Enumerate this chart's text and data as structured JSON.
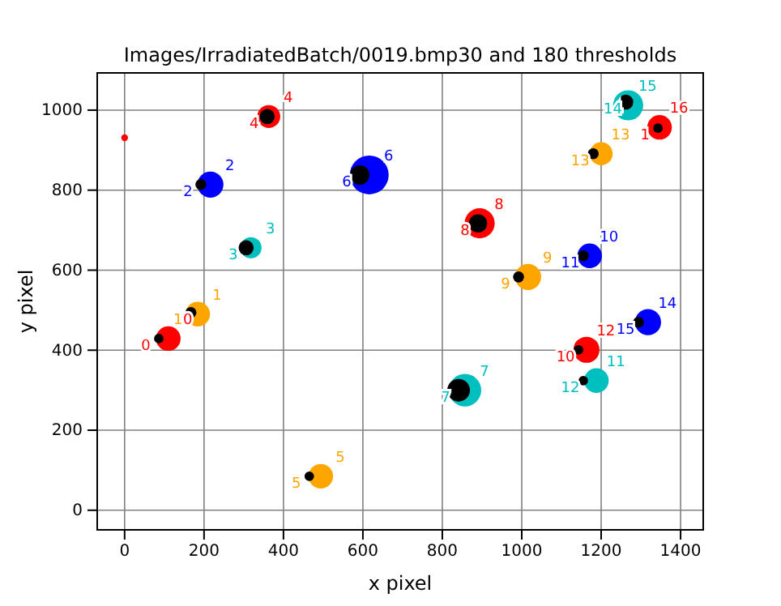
{
  "chart_data": {
    "type": "bubble",
    "title": "Images/IrradiatedBatch/0019.bmp30 and 180 thresholds",
    "xlabel": "x pixel",
    "ylabel": "y pixel",
    "xlim": [
      -69,
      1457
    ],
    "ylim": [
      -49,
      1093
    ],
    "xticks": [
      0,
      200,
      400,
      600,
      800,
      1000,
      1200,
      1400
    ],
    "yticks": [
      0,
      200,
      400,
      600,
      800,
      1000
    ],
    "grid": true,
    "marker": "circle",
    "series": [
      {
        "color": "#000000",
        "x": [
          86,
          167,
          192,
          306,
          359,
          465,
          592,
          841,
          890,
          992,
          1155,
          1155,
          1143,
          1180,
          1294,
          1262,
          1343
        ],
        "values": [
          429,
          494,
          814,
          656,
          984,
          85,
          838,
          300,
          717,
          583,
          636,
          324,
          401,
          891,
          470,
          1020,
          955
        ],
        "sizes": [
          0.06,
          0.08,
          0.08,
          0.15,
          0.15,
          0.06,
          0.25,
          0.34,
          0.22,
          0.08,
          0.08,
          0.06,
          0.06,
          0.08,
          0.08,
          0.15,
          0.06
        ]
      },
      {
        "color": "#ff0000",
        "x": [
          110,
          363,
          894,
          1163,
          1347,
          0
        ],
        "values": [
          429,
          984,
          717,
          401,
          957,
          931
        ],
        "sizes": [
          0.4,
          0.35,
          0.6,
          0.45,
          0.4,
          0.03
        ]
      },
      {
        "color": "#0000ff",
        "x": [
          216,
          616,
          1171,
          1318
        ],
        "values": [
          814,
          838,
          636,
          470
        ],
        "sizes": [
          0.45,
          1,
          0.4,
          0.45
        ]
      },
      {
        "color": "#00bfbf",
        "x": [
          318,
          857,
          1188,
          1268
        ],
        "values": [
          656,
          300,
          324,
          1012
        ],
        "sizes": [
          0.3,
          0.7,
          0.4,
          0.6
        ]
      },
      {
        "color": "#ffa500",
        "x": [
          184,
          494,
          1016,
          1200
        ],
        "values": [
          490,
          85,
          583,
          891
        ],
        "sizes": [
          0.4,
          0.4,
          0.45,
          0.35
        ]
      }
    ],
    "annotations": [
      {
        "text": "0",
        "x": 110,
        "y": 429
      },
      {
        "text": "1",
        "x": 184,
        "y": 490
      },
      {
        "text": "2",
        "x": 216,
        "y": 814
      },
      {
        "text": "3",
        "x": 318,
        "y": 656
      },
      {
        "text": "4",
        "x": 363,
        "y": 984
      },
      {
        "text": "5",
        "x": 494,
        "y": 85
      },
      {
        "text": "6",
        "x": 616,
        "y": 838
      },
      {
        "text": "7",
        "x": 857,
        "y": 300
      },
      {
        "text": "8",
        "x": 894,
        "y": 717
      },
      {
        "text": "9",
        "x": 1016,
        "y": 583
      },
      {
        "text": "10",
        "x": 1171,
        "y": 636
      },
      {
        "text": "11",
        "x": 1188,
        "y": 324
      },
      {
        "text": "12",
        "x": 1163,
        "y": 401
      },
      {
        "text": "13",
        "x": 1200,
        "y": 891
      },
      {
        "text": "14",
        "x": 1318,
        "y": 470
      },
      {
        "text": "15",
        "x": 1268,
        "y": 1012
      },
      {
        "text": "16",
        "x": 1347,
        "y": 957
      },
      {
        "text": "0",
        "x": 86,
        "y": 429
      },
      {
        "text": "1",
        "x": 167,
        "y": 494
      },
      {
        "text": "2",
        "x": 192,
        "y": 814
      },
      {
        "text": "3",
        "x": 306,
        "y": 656
      },
      {
        "text": "4",
        "x": 359,
        "y": 984
      },
      {
        "text": "5",
        "x": 465,
        "y": 85
      },
      {
        "text": "6",
        "x": 592,
        "y": 838
      },
      {
        "text": "7",
        "x": 841,
        "y": 300
      },
      {
        "text": "8",
        "x": 890,
        "y": 717
      },
      {
        "text": "9",
        "x": 992,
        "y": 583
      },
      {
        "text": "11",
        "x": 1155,
        "y": 636
      },
      {
        "text": "12",
        "x": 1155,
        "y": 324
      },
      {
        "text": "10",
        "x": 1143,
        "y": 401
      },
      {
        "text": "13",
        "x": 1180,
        "y": 891
      },
      {
        "text": "15",
        "x": 1294,
        "y": 470
      },
      {
        "text": "14",
        "x": 1262,
        "y": 1020
      },
      {
        "text": "1",
        "x": 1343,
        "y": 955
      }
    ]
  }
}
